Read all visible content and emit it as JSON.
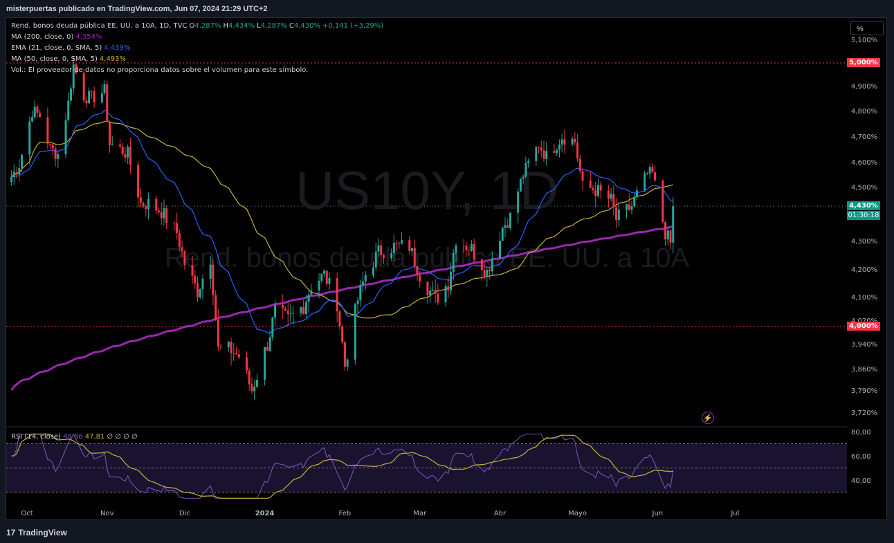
{
  "header": {
    "publisher_line": "misterpuertas publicado en TradingView.com, Jun 07, 2024 21:29 UTC+2"
  },
  "legend": {
    "symbol_title": "Rend. bonos deuda pública EE. UU. a 10A, 1D, TVC",
    "ohlc": {
      "o_label": "O",
      "o": "4,287%",
      "h_label": "H",
      "h": "4,434%",
      "l_label": "L",
      "l": "4,287%",
      "c_label": "C",
      "c": "4,430%",
      "change": "+0,141 (+3,29%)"
    },
    "ma200": {
      "label": "MA (200, close, 0)",
      "value": "4,354%"
    },
    "ema21": {
      "label": "EMA (21, close, 0, SMA, 5)",
      "value": "4,439%"
    },
    "ma50": {
      "label": "MA (50, close, 0, SMA, 5)",
      "value": "4,493%"
    },
    "volume_note": "Vol.: El proveedor de datos no proporciona datos sobre el volumen para este símbolo.",
    "rsi": {
      "label": "RSI (14, close)",
      "value": "48,86",
      "ma_value": "47,81",
      "extra": "∅ ∅ ∅ ∅"
    }
  },
  "watermark": {
    "symbol": "US10Y, 1D",
    "name": "Rend. bonos deuda pública EE. UU. a 10A"
  },
  "scale_button": "%",
  "price_badges": {
    "top_level": "5,000%",
    "bottom_level": "4,000%",
    "last_price": "4,430%",
    "countdown": "01:30:18"
  },
  "colors": {
    "up": "#26a69a",
    "down": "#f23645",
    "ma200": "#9c27b0",
    "ema21": "#2962ff",
    "ma50": "#c9b23a",
    "rsi": "#7e57c2",
    "rsi_ma": "#c9b23a",
    "level_line": "#f23645"
  },
  "brand": {
    "icon": "tradingview-logo-icon",
    "text": "TradingView"
  },
  "chart_data": [
    {
      "type": "candlestick",
      "title": "Rend. bonos deuda pública EE. UU. a 10A, 1D, TVC",
      "y_ticks": [
        "5,100%",
        "4,900%",
        "4,800%",
        "4,700%",
        "4,600%",
        "4,500%",
        "4,300%",
        "4,200%",
        "4,100%",
        "4,020%",
        "3,940%",
        "3,860%",
        "3,790%",
        "3,720%"
      ],
      "y_tick_values": [
        5.1,
        4.9,
        4.8,
        4.7,
        4.6,
        4.5,
        4.3,
        4.2,
        4.1,
        4.02,
        3.94,
        3.86,
        3.79,
        3.72
      ],
      "x_ticks": [
        {
          "label": "Oct",
          "date": "2023-10-01"
        },
        {
          "label": "Nov",
          "date": "2023-11-01"
        },
        {
          "label": "Dic",
          "date": "2023-12-01"
        },
        {
          "label": "2024",
          "date": "2024-01-01"
        },
        {
          "label": "Feb",
          "date": "2024-02-01"
        },
        {
          "label": "Mar",
          "date": "2024-03-01"
        },
        {
          "label": "Abr",
          "date": "2024-04-01"
        },
        {
          "label": "Mayo",
          "date": "2024-05-01"
        },
        {
          "label": "Jun",
          "date": "2024-06-01"
        },
        {
          "label": "Jul",
          "date": "2024-07-01"
        }
      ],
      "horizontal_levels": [
        5.0,
        4.0
      ],
      "last_close": 4.43,
      "close_series": [
        {
          "date": "2023-09-25",
          "close": 4.54
        },
        {
          "date": "2023-09-28",
          "close": 4.59
        },
        {
          "date": "2023-10-03",
          "close": 4.8
        },
        {
          "date": "2023-10-06",
          "close": 4.78
        },
        {
          "date": "2023-10-10",
          "close": 4.65
        },
        {
          "date": "2023-10-13",
          "close": 4.63
        },
        {
          "date": "2023-10-17",
          "close": 4.83
        },
        {
          "date": "2023-10-19",
          "close": 4.99
        },
        {
          "date": "2023-10-23",
          "close": 4.86
        },
        {
          "date": "2023-10-26",
          "close": 4.85
        },
        {
          "date": "2023-10-31",
          "close": 4.88
        },
        {
          "date": "2023-11-02",
          "close": 4.67
        },
        {
          "date": "2023-11-06",
          "close": 4.65
        },
        {
          "date": "2023-11-09",
          "close": 4.63
        },
        {
          "date": "2023-11-14",
          "close": 4.44
        },
        {
          "date": "2023-11-17",
          "close": 4.44
        },
        {
          "date": "2023-11-22",
          "close": 4.41
        },
        {
          "date": "2023-11-28",
          "close": 4.33
        },
        {
          "date": "2023-12-01",
          "close": 4.22
        },
        {
          "date": "2023-12-06",
          "close": 4.12
        },
        {
          "date": "2023-12-11",
          "close": 4.24
        },
        {
          "date": "2023-12-14",
          "close": 3.92
        },
        {
          "date": "2023-12-19",
          "close": 3.92
        },
        {
          "date": "2023-12-22",
          "close": 3.9
        },
        {
          "date": "2023-12-27",
          "close": 3.79
        },
        {
          "date": "2024-01-02",
          "close": 3.94
        },
        {
          "date": "2024-01-05",
          "close": 4.05
        },
        {
          "date": "2024-01-10",
          "close": 4.02
        },
        {
          "date": "2024-01-16",
          "close": 4.07
        },
        {
          "date": "2024-01-19",
          "close": 4.14
        },
        {
          "date": "2024-01-24",
          "close": 4.18
        },
        {
          "date": "2024-01-29",
          "close": 4.08
        },
        {
          "date": "2024-02-01",
          "close": 3.87
        },
        {
          "date": "2024-02-06",
          "close": 4.09
        },
        {
          "date": "2024-02-09",
          "close": 4.18
        },
        {
          "date": "2024-02-14",
          "close": 4.26
        },
        {
          "date": "2024-02-20",
          "close": 4.28
        },
        {
          "date": "2024-02-26",
          "close": 4.28
        },
        {
          "date": "2024-03-01",
          "close": 4.18
        },
        {
          "date": "2024-03-07",
          "close": 4.09
        },
        {
          "date": "2024-03-12",
          "close": 4.15
        },
        {
          "date": "2024-03-15",
          "close": 4.31
        },
        {
          "date": "2024-03-21",
          "close": 4.27
        },
        {
          "date": "2024-03-27",
          "close": 4.19
        },
        {
          "date": "2024-04-02",
          "close": 4.35
        },
        {
          "date": "2024-04-05",
          "close": 4.39
        },
        {
          "date": "2024-04-10",
          "close": 4.55
        },
        {
          "date": "2024-04-16",
          "close": 4.67
        },
        {
          "date": "2024-04-19",
          "close": 4.62
        },
        {
          "date": "2024-04-25",
          "close": 4.7
        },
        {
          "date": "2024-04-30",
          "close": 4.68
        },
        {
          "date": "2024-05-03",
          "close": 4.5
        },
        {
          "date": "2024-05-08",
          "close": 4.49
        },
        {
          "date": "2024-05-14",
          "close": 4.45
        },
        {
          "date": "2024-05-16",
          "close": 4.38
        },
        {
          "date": "2024-05-22",
          "close": 4.43
        },
        {
          "date": "2024-05-28",
          "close": 4.55
        },
        {
          "date": "2024-05-30",
          "close": 4.55
        },
        {
          "date": "2024-06-04",
          "close": 4.33
        },
        {
          "date": "2024-06-06",
          "close": 4.29
        },
        {
          "date": "2024-06-07",
          "close": 4.43
        }
      ]
    },
    {
      "type": "line",
      "title": "RSI (14, close)",
      "y_ticks": [
        "80,00",
        "60,00",
        "40,00"
      ],
      "y_tick_values": [
        80,
        60,
        40
      ],
      "bands": [
        70,
        50,
        30
      ],
      "series": [
        {
          "name": "RSI (14, close)",
          "last": 48.86
        },
        {
          "name": "RSI MA",
          "last": 47.81
        }
      ]
    }
  ]
}
